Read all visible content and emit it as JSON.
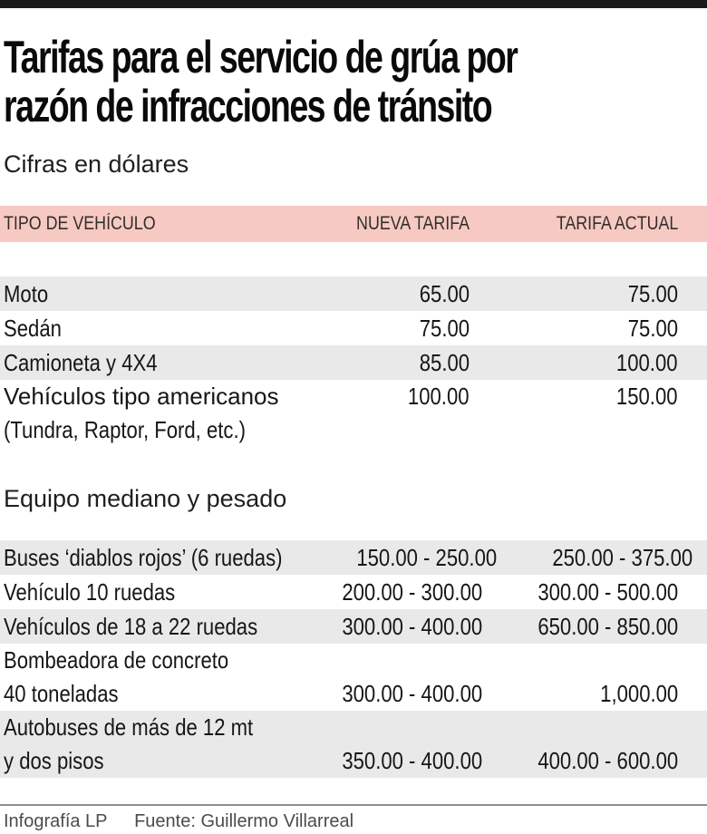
{
  "colors": {
    "top_bar": "#1a1a1a",
    "header_band_pink": "#f6cac2",
    "row_shaded_gray": "#e9e9e9",
    "title_text": "#0a0a0a",
    "footer_text": "#4b4b4b",
    "footer_divider": "#8f8f8f"
  },
  "title": {
    "line1": "Tarifas para el servicio de grúa por",
    "line2": "razón de infracciones de tránsito",
    "subtitle": "Cifras en dólares"
  },
  "table": {
    "columns": {
      "vehicle": "TIPO DE VEHÍCULO",
      "new_rate": "NUEVA TARIFA",
      "current_rate": "TARIFA ACTUAL"
    },
    "light": {
      "rows": [
        {
          "label": "Moto",
          "nueva": "65.00",
          "actual": "75.00"
        },
        {
          "label": "Sedán",
          "nueva": "75.00",
          "actual": "75.00"
        },
        {
          "label": "Camioneta y 4X4",
          "nueva": "85.00",
          "actual": "100.00"
        },
        {
          "label": "Vehículos tipo americanos",
          "label2": "(Tundra, Raptor, Ford, etc.)",
          "nueva": "100.00",
          "actual": "150.00"
        }
      ]
    },
    "heavy": {
      "heading": "Equipo mediano y pesado",
      "rows": [
        {
          "label": "Buses ‘diablos rojos’ (6 ruedas)",
          "nueva": "150.00 - 250.00",
          "actual": "250.00 - 375.00"
        },
        {
          "label": "Vehículo 10 ruedas",
          "nueva": "200.00 - 300.00",
          "actual": "300.00 - 500.00"
        },
        {
          "label": "Vehículos de 18 a 22 ruedas",
          "nueva": "300.00 - 400.00",
          "actual": "650.00 - 850.00"
        },
        {
          "label": "Bombeadora de concreto",
          "label2": "40 toneladas",
          "nueva": "300.00 - 400.00",
          "actual": "1,000.00"
        },
        {
          "label": "Autobuses de más de 12 mt",
          "label2": "y dos pisos",
          "nueva": "350.00 - 400.00",
          "actual": "400.00 - 600.00"
        }
      ]
    }
  },
  "footer": {
    "credit": "Infografía LP",
    "source": "Fuente: Guillermo Villarreal"
  },
  "chart_data": {
    "type": "table",
    "title": "Tarifas para el servicio de grúa por razón de infracciones de tránsito",
    "subtitle": "Cifras en dólares",
    "columns": [
      "TIPO DE VEHÍCULO",
      "NUEVA TARIFA",
      "TARIFA ACTUAL"
    ],
    "sections": [
      {
        "name": "",
        "rows": [
          [
            "Moto",
            "65.00",
            "75.00"
          ],
          [
            "Sedán",
            "75.00",
            "75.00"
          ],
          [
            "Camioneta y 4X4",
            "85.00",
            "100.00"
          ],
          [
            "Vehículos tipo americanos (Tundra, Raptor, Ford, etc.)",
            "100.00",
            "150.00"
          ]
        ]
      },
      {
        "name": "Equipo mediano y pesado",
        "rows": [
          [
            "Buses ‘diablos rojos’ (6 ruedas)",
            "150.00 - 250.00",
            "250.00 - 375.00"
          ],
          [
            "Vehículo 10 ruedas",
            "200.00 - 300.00",
            "300.00 - 500.00"
          ],
          [
            "Vehículos de 18 a 22 ruedas",
            "300.00 - 400.00",
            "650.00 - 850.00"
          ],
          [
            "Bombeadora de concreto 40 toneladas",
            "300.00 - 400.00",
            "1,000.00"
          ],
          [
            "Autobuses de más de 12 mt y dos pisos",
            "350.00 - 400.00",
            "400.00 - 600.00"
          ]
        ]
      }
    ],
    "credit": "Infografía LP",
    "source": "Fuente: Guillermo Villarreal"
  }
}
